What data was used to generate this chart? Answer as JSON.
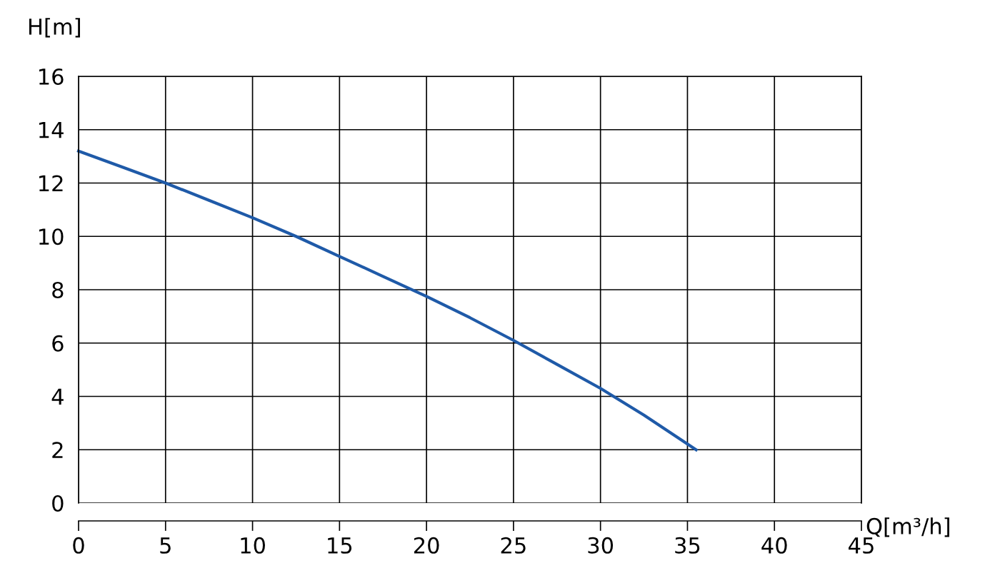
{
  "chart_data": {
    "type": "line",
    "xlabel": "Q[m³/h]",
    "ylabel": "H[m]",
    "x": [
      0,
      2.5,
      5,
      7.5,
      10,
      12.5,
      15,
      17.5,
      20,
      22.5,
      25,
      27.5,
      30,
      32.5,
      35.5
    ],
    "series": [
      {
        "color": "#1f5aa8",
        "values": [
          13.2,
          12.6,
          12.0,
          11.35,
          10.7,
          10.0,
          9.25,
          8.5,
          7.75,
          6.95,
          6.1,
          5.2,
          4.3,
          3.3,
          2.0
        ]
      }
    ],
    "xlim": [
      0,
      45
    ],
    "xticks": [
      0,
      5,
      10,
      15,
      20,
      25,
      30,
      35,
      40,
      45
    ],
    "ylim": [
      0,
      16
    ],
    "yticks": [
      0,
      2,
      4,
      6,
      8,
      10,
      12,
      14,
      16
    ],
    "grid": true,
    "marker": "none",
    "line_style": "solid"
  }
}
